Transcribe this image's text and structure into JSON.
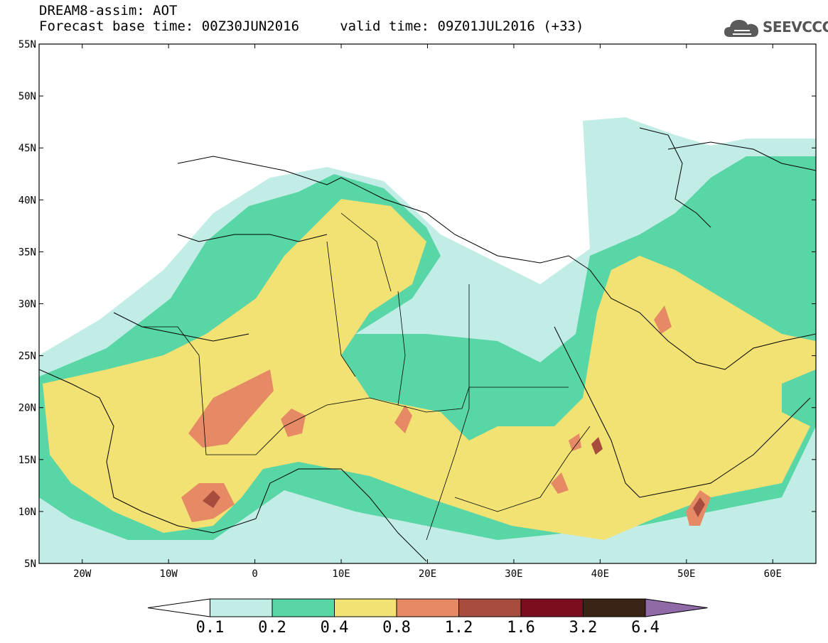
{
  "header": {
    "line1": "DREAM8-assim: AOT",
    "line2": "Forecast base time: 00Z30JUN2016     valid time: 09Z01JUL2016 (+33)"
  },
  "logo": {
    "text": "SEEVCCC",
    "icon": "cloud-icon",
    "color": "#555555"
  },
  "map": {
    "lon_range": [
      -25,
      65
    ],
    "lat_range": [
      5,
      55
    ],
    "lat_ticks": [
      "5N",
      "10N",
      "15N",
      "20N",
      "25N",
      "30N",
      "35N",
      "40N",
      "45N",
      "50N",
      "55N"
    ],
    "lon_ticks": [
      "20W",
      "10W",
      "0",
      "10E",
      "20E",
      "30E",
      "40E",
      "50E",
      "60E"
    ]
  },
  "colorbar": {
    "labels": [
      "0.1",
      "0.2",
      "0.4",
      "0.8",
      "1.2",
      "1.6",
      "3.2",
      "6.4"
    ],
    "colors": [
      "#ffffff",
      "#c2ede6",
      "#58d6a6",
      "#f2e173",
      "#e68a66",
      "#a84c3e",
      "#7a0e1f",
      "#3b2316",
      "#8f6aa6"
    ]
  }
}
